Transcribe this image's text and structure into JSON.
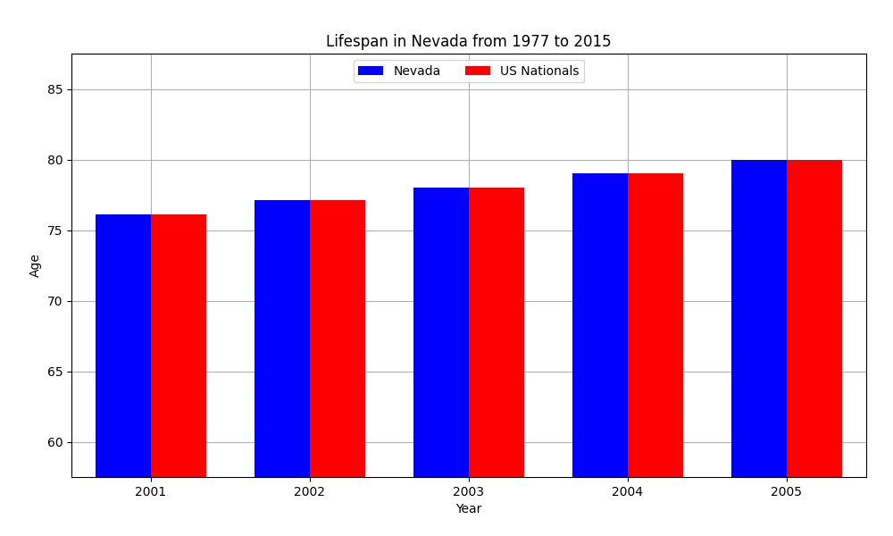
{
  "chart_data": {
    "type": "bar",
    "title": "Lifespan in Nevada from 1977 to 2015",
    "x_label": "Year",
    "y_label": "Age",
    "categories": [
      "2001",
      "2002",
      "2003",
      "2004",
      "2005"
    ],
    "series": [
      {
        "name": "Nevada",
        "color": "#0000ff",
        "values": [
          76.1,
          77.1,
          78.0,
          79.0,
          80.0
        ]
      },
      {
        "name": "US Nationals",
        "color": "#ff0000",
        "values": [
          76.1,
          77.1,
          78.0,
          79.0,
          80.0
        ]
      }
    ],
    "ylim": [
      57.5,
      87.5
    ],
    "yticks": [
      60,
      65,
      70,
      75,
      80,
      85
    ],
    "grid": true,
    "legend": "upper center"
  }
}
